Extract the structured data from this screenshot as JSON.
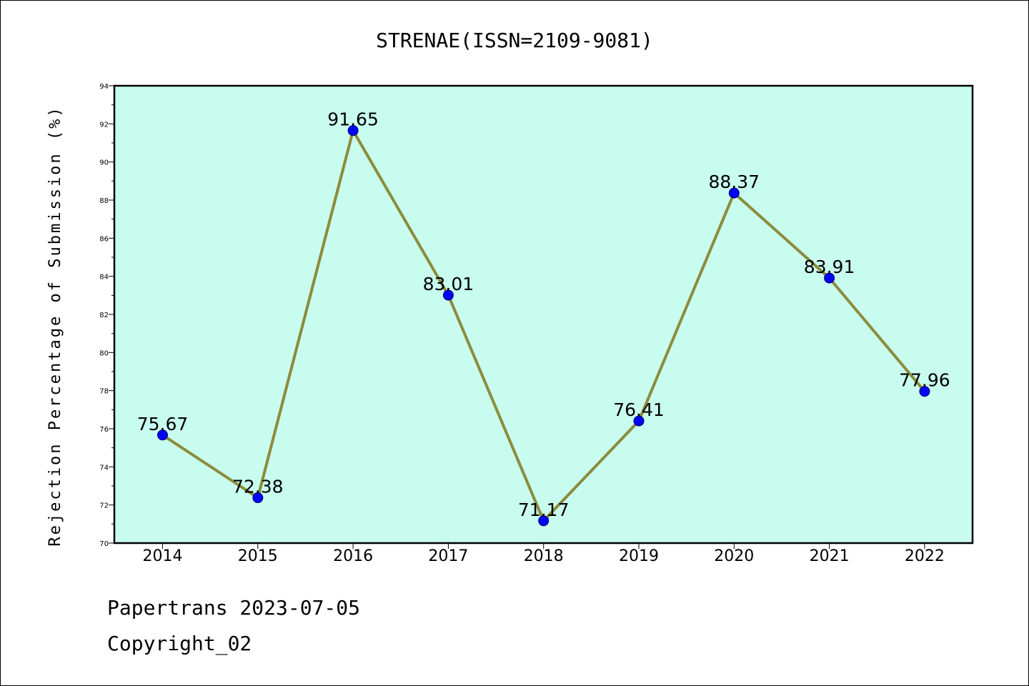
{
  "colors": {
    "plot_background": "#c8fcee",
    "line": "#8c8c3c",
    "marker": "#0000ff"
  },
  "chart_data": {
    "type": "line",
    "title": "STRENAE(ISSN=2109-9081)",
    "xlabel": "",
    "ylabel": "Rejection Percentage of Submission (%)",
    "categories": [
      "2014",
      "2015",
      "2016",
      "2017",
      "2018",
      "2019",
      "2020",
      "2021",
      "2022"
    ],
    "series": [
      {
        "values": [
          75.67,
          72.38,
          91.65,
          83.01,
          71.17,
          76.41,
          88.37,
          83.91,
          77.96
        ]
      }
    ],
    "data_labels": [
      "75.67",
      "72.38",
      "91.65",
      "83.01",
      "71.17",
      "76.41",
      "88.37",
      "83.91",
      "77.96"
    ],
    "ylim": [
      70,
      94
    ],
    "yticks": [
      70,
      72,
      74,
      76,
      78,
      80,
      82,
      84,
      86,
      88,
      90,
      92,
      94
    ],
    "grid": false,
    "legend": "none"
  },
  "footer": {
    "line1": "Papertrans 2023-07-05",
    "line2": "Copyright_02"
  }
}
